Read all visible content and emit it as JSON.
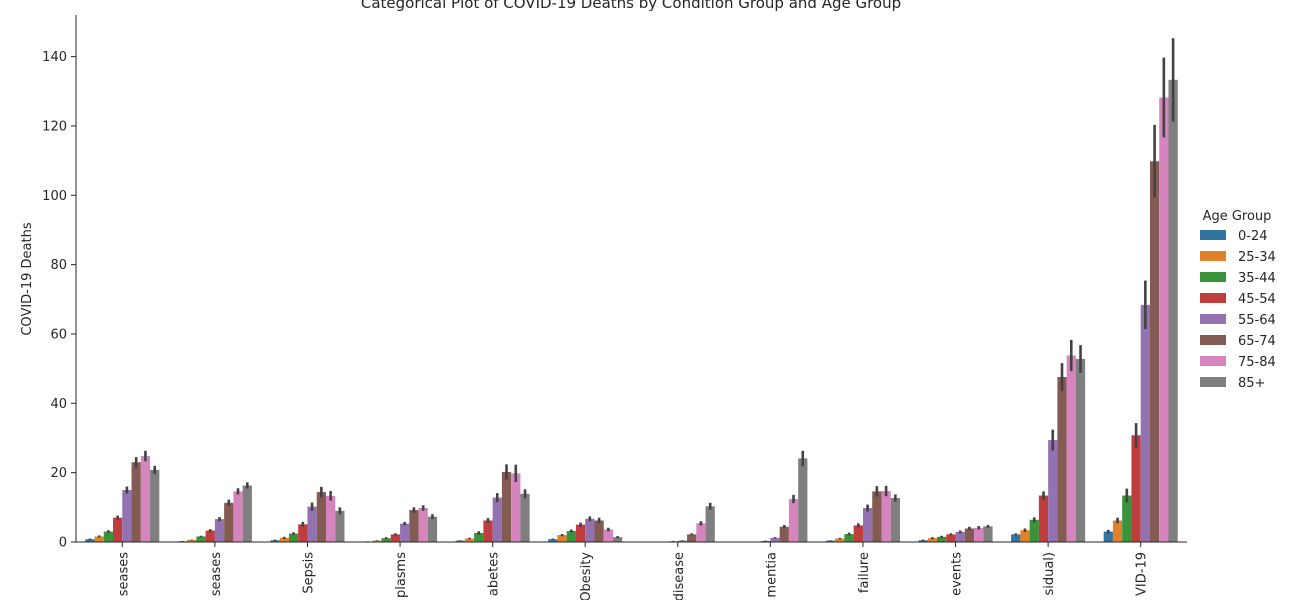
{
  "chart_data": {
    "type": "bar",
    "title": "Categorical Plot of COVID-19 Deaths by Condition Group and Age Group",
    "xlabel": "",
    "ylabel": "COVID-19 Deaths",
    "ylim": [
      0,
      152
    ],
    "yticks": [
      0,
      20,
      40,
      60,
      80,
      100,
      120,
      140
    ],
    "grid": false,
    "legend_position": "right",
    "legend_title": "Age Group",
    "categories": [
      "seases",
      "seases",
      "Sepsis",
      "plasms",
      "abetes",
      "Obesity",
      "disease",
      "mentia",
      "failure",
      "events",
      "sidual)",
      "VID-19"
    ],
    "series": [
      {
        "name": "0-24",
        "color": "#3274a1",
        "values": [
          0.8,
          0.2,
          0.5,
          0.1,
          0.4,
          0.8,
          0.0,
          0.0,
          0.4,
          0.5,
          2.2,
          3.0
        ],
        "errors": [
          0.2,
          0.1,
          0.2,
          0.1,
          0.1,
          0.2,
          0.0,
          0.0,
          0.1,
          0.2,
          0.3,
          0.5
        ]
      },
      {
        "name": "25-34",
        "color": "#e1812c",
        "values": [
          1.6,
          0.6,
          1.2,
          0.4,
          1.0,
          2.0,
          0.1,
          0.0,
          1.0,
          1.1,
          3.4,
          6.2
        ],
        "errors": [
          0.3,
          0.1,
          0.3,
          0.1,
          0.2,
          0.3,
          0.0,
          0.0,
          0.2,
          0.3,
          0.5,
          0.8
        ]
      },
      {
        "name": "35-44",
        "color": "#3a923a",
        "values": [
          3.0,
          1.6,
          2.4,
          1.1,
          2.6,
          3.2,
          0.1,
          0.1,
          2.3,
          1.5,
          6.4,
          13.4
        ],
        "errors": [
          0.4,
          0.2,
          0.4,
          0.3,
          0.5,
          0.4,
          0.0,
          0.0,
          0.4,
          0.3,
          0.7,
          2.0
        ]
      },
      {
        "name": "45-54",
        "color": "#c03d3e",
        "values": [
          7.0,
          3.3,
          5.1,
          2.2,
          6.2,
          5.0,
          0.2,
          0.3,
          4.8,
          2.2,
          13.4,
          30.8
        ],
        "errors": [
          0.6,
          0.4,
          0.7,
          0.3,
          0.7,
          0.6,
          0.1,
          0.1,
          0.6,
          0.3,
          1.2,
          3.5
        ]
      },
      {
        "name": "55-64",
        "color": "#9372b2",
        "values": [
          15.0,
          6.6,
          10.2,
          5.3,
          12.8,
          6.7,
          0.4,
          1.2,
          9.8,
          2.9,
          29.4,
          68.4
        ],
        "errors": [
          1.0,
          0.6,
          1.2,
          0.5,
          1.3,
          0.7,
          0.1,
          0.2,
          1.0,
          0.4,
          3.0,
          7.0
        ]
      },
      {
        "name": "65-74",
        "color": "#845b53",
        "values": [
          23.0,
          11.3,
          14.4,
          9.2,
          20.2,
          6.2,
          2.2,
          4.4,
          14.6,
          3.9,
          47.6,
          109.8
        ],
        "errors": [
          1.5,
          0.9,
          1.5,
          0.8,
          2.2,
          0.8,
          0.3,
          0.5,
          1.5,
          0.5,
          4.0,
          10.5
        ]
      },
      {
        "name": "75-84",
        "color": "#d684bd",
        "values": [
          24.8,
          14.6,
          13.3,
          9.8,
          19.8,
          3.6,
          5.4,
          12.4,
          14.7,
          4.1,
          53.8,
          128.2
        ],
        "errors": [
          1.5,
          0.9,
          1.4,
          0.8,
          2.5,
          0.5,
          0.6,
          1.2,
          1.5,
          0.5,
          4.5,
          11.5
        ]
      },
      {
        "name": "85+",
        "color": "#7f7f7f",
        "values": [
          20.8,
          16.3,
          9.0,
          7.3,
          13.9,
          1.4,
          10.3,
          24.1,
          12.7,
          4.5,
          52.8,
          133.3
        ],
        "errors": [
          1.2,
          0.9,
          1.0,
          0.7,
          1.3,
          0.3,
          1.0,
          2.2,
          1.0,
          0.4,
          4.0,
          12.0
        ]
      }
    ]
  }
}
